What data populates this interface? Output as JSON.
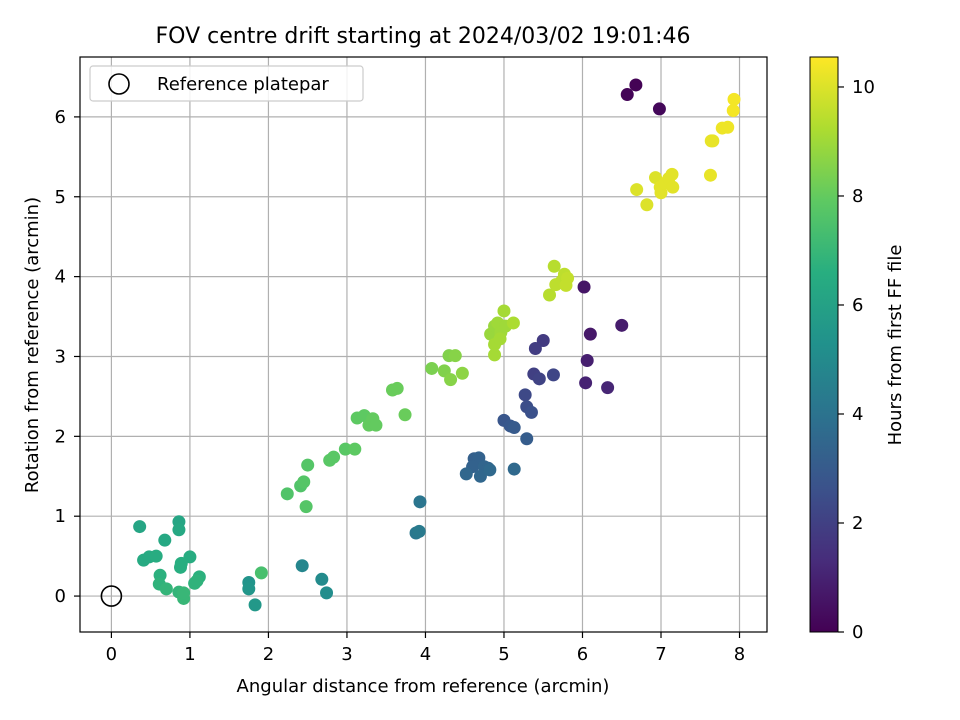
{
  "chart_data": {
    "type": "scatter",
    "title": "FOV centre drift starting at 2024/03/02 19:01:46",
    "xlabel": "Angular distance from reference (arcmin)",
    "ylabel": "Rotation from reference (arcmin)",
    "xlim": [
      -0.4,
      8.35
    ],
    "ylim": [
      -0.45,
      6.75
    ],
    "xticks": [
      0,
      1,
      2,
      3,
      4,
      5,
      6,
      7,
      8
    ],
    "yticks": [
      0,
      1,
      2,
      3,
      4,
      5,
      6
    ],
    "grid": true,
    "legend": {
      "placement": "top-left",
      "entries": [
        {
          "label": "Reference platepar",
          "marker": "open-circle"
        }
      ]
    },
    "reference_point": {
      "x": 0,
      "y": 0
    },
    "colorbar": {
      "label": "Hours from first FF file",
      "min": 0,
      "max": 10.55,
      "ticks": [
        0,
        2,
        4,
        6,
        8,
        10
      ],
      "colormap": "viridis"
    },
    "points": [
      {
        "x": 6.57,
        "y": 6.28,
        "c": 0.1
      },
      {
        "x": 6.68,
        "y": 6.4,
        "c": 0.05
      },
      {
        "x": 6.98,
        "y": 6.1,
        "c": 0.2
      },
      {
        "x": 6.02,
        "y": 3.87,
        "c": 0.6
      },
      {
        "x": 6.1,
        "y": 3.28,
        "c": 0.7
      },
      {
        "x": 6.5,
        "y": 3.39,
        "c": 0.8
      },
      {
        "x": 6.06,
        "y": 2.95,
        "c": 0.9
      },
      {
        "x": 6.04,
        "y": 2.67,
        "c": 1.0
      },
      {
        "x": 6.32,
        "y": 2.61,
        "c": 1.1
      },
      {
        "x": 5.5,
        "y": 3.2,
        "c": 1.8
      },
      {
        "x": 5.4,
        "y": 3.1,
        "c": 1.9
      },
      {
        "x": 5.38,
        "y": 2.78,
        "c": 2.0
      },
      {
        "x": 5.45,
        "y": 2.72,
        "c": 2.1
      },
      {
        "x": 5.63,
        "y": 2.77,
        "c": 2.2
      },
      {
        "x": 5.27,
        "y": 2.52,
        "c": 2.3
      },
      {
        "x": 5.29,
        "y": 2.37,
        "c": 2.5
      },
      {
        "x": 5.35,
        "y": 2.3,
        "c": 2.6
      },
      {
        "x": 5.0,
        "y": 2.2,
        "c": 2.8
      },
      {
        "x": 5.08,
        "y": 2.13,
        "c": 2.9
      },
      {
        "x": 5.13,
        "y": 2.11,
        "c": 3.0
      },
      {
        "x": 5.29,
        "y": 1.97,
        "c": 3.1
      },
      {
        "x": 4.62,
        "y": 1.72,
        "c": 3.2
      },
      {
        "x": 4.68,
        "y": 1.73,
        "c": 3.3
      },
      {
        "x": 4.6,
        "y": 1.62,
        "c": 3.3
      },
      {
        "x": 4.75,
        "y": 1.62,
        "c": 3.4
      },
      {
        "x": 4.8,
        "y": 1.6,
        "c": 3.4
      },
      {
        "x": 4.52,
        "y": 1.53,
        "c": 3.5
      },
      {
        "x": 4.7,
        "y": 1.5,
        "c": 3.5
      },
      {
        "x": 5.13,
        "y": 1.59,
        "c": 3.6
      },
      {
        "x": 4.82,
        "y": 1.58,
        "c": 3.6
      },
      {
        "x": 3.93,
        "y": 1.18,
        "c": 4.1
      },
      {
        "x": 3.88,
        "y": 0.79,
        "c": 4.2
      },
      {
        "x": 3.92,
        "y": 0.81,
        "c": 4.3
      },
      {
        "x": 2.43,
        "y": 0.38,
        "c": 4.8
      },
      {
        "x": 2.68,
        "y": 0.21,
        "c": 5.0
      },
      {
        "x": 2.74,
        "y": 0.04,
        "c": 5.1
      },
      {
        "x": 1.75,
        "y": 0.17,
        "c": 5.4
      },
      {
        "x": 1.75,
        "y": 0.09,
        "c": 5.5
      },
      {
        "x": 1.83,
        "y": -0.11,
        "c": 5.6
      },
      {
        "x": 0.36,
        "y": 0.87,
        "c": 6.2
      },
      {
        "x": 0.86,
        "y": 0.93,
        "c": 6.2
      },
      {
        "x": 0.86,
        "y": 0.83,
        "c": 6.3
      },
      {
        "x": 0.68,
        "y": 0.7,
        "c": 6.3
      },
      {
        "x": 0.41,
        "y": 0.45,
        "c": 6.4
      },
      {
        "x": 0.48,
        "y": 0.49,
        "c": 6.4
      },
      {
        "x": 0.57,
        "y": 0.5,
        "c": 6.5
      },
      {
        "x": 1.0,
        "y": 0.49,
        "c": 6.5
      },
      {
        "x": 0.89,
        "y": 0.41,
        "c": 6.6
      },
      {
        "x": 0.88,
        "y": 0.36,
        "c": 6.6
      },
      {
        "x": 0.62,
        "y": 0.26,
        "c": 6.7
      },
      {
        "x": 1.12,
        "y": 0.24,
        "c": 6.7
      },
      {
        "x": 0.61,
        "y": 0.15,
        "c": 6.8
      },
      {
        "x": 1.06,
        "y": 0.16,
        "c": 6.8
      },
      {
        "x": 1.09,
        "y": 0.19,
        "c": 6.8
      },
      {
        "x": 0.7,
        "y": 0.09,
        "c": 6.9
      },
      {
        "x": 0.86,
        "y": 0.05,
        "c": 6.9
      },
      {
        "x": 0.92,
        "y": -0.03,
        "c": 7.0
      },
      {
        "x": 0.92,
        "y": 0.04,
        "c": 7.0
      },
      {
        "x": 1.91,
        "y": 0.29,
        "c": 7.4
      },
      {
        "x": 2.24,
        "y": 1.28,
        "c": 7.6
      },
      {
        "x": 2.41,
        "y": 1.38,
        "c": 7.6
      },
      {
        "x": 2.45,
        "y": 1.43,
        "c": 7.7
      },
      {
        "x": 2.48,
        "y": 1.12,
        "c": 7.7
      },
      {
        "x": 2.5,
        "y": 1.64,
        "c": 7.7
      },
      {
        "x": 2.78,
        "y": 1.7,
        "c": 7.8
      },
      {
        "x": 2.83,
        "y": 1.74,
        "c": 7.8
      },
      {
        "x": 2.98,
        "y": 1.84,
        "c": 7.8
      },
      {
        "x": 3.1,
        "y": 1.84,
        "c": 7.9
      },
      {
        "x": 3.13,
        "y": 2.23,
        "c": 7.9
      },
      {
        "x": 3.22,
        "y": 2.26,
        "c": 7.9
      },
      {
        "x": 3.28,
        "y": 2.14,
        "c": 8.0
      },
      {
        "x": 3.33,
        "y": 2.22,
        "c": 8.0
      },
      {
        "x": 3.37,
        "y": 2.14,
        "c": 8.0
      },
      {
        "x": 3.58,
        "y": 2.58,
        "c": 8.1
      },
      {
        "x": 3.64,
        "y": 2.6,
        "c": 8.1
      },
      {
        "x": 3.74,
        "y": 2.27,
        "c": 8.1
      },
      {
        "x": 4.08,
        "y": 2.85,
        "c": 8.4
      },
      {
        "x": 4.24,
        "y": 2.82,
        "c": 8.5
      },
      {
        "x": 4.3,
        "y": 3.01,
        "c": 8.5
      },
      {
        "x": 4.38,
        "y": 3.01,
        "c": 8.6
      },
      {
        "x": 4.32,
        "y": 2.71,
        "c": 8.6
      },
      {
        "x": 4.47,
        "y": 2.79,
        "c": 8.7
      },
      {
        "x": 4.83,
        "y": 3.28,
        "c": 8.9
      },
      {
        "x": 4.88,
        "y": 3.38,
        "c": 8.9
      },
      {
        "x": 4.92,
        "y": 3.42,
        "c": 9.0
      },
      {
        "x": 4.96,
        "y": 3.3,
        "c": 9.0
      },
      {
        "x": 5.02,
        "y": 3.38,
        "c": 9.0
      },
      {
        "x": 5.0,
        "y": 3.57,
        "c": 9.1
      },
      {
        "x": 4.88,
        "y": 3.15,
        "c": 9.1
      },
      {
        "x": 4.95,
        "y": 3.22,
        "c": 9.1
      },
      {
        "x": 4.88,
        "y": 3.02,
        "c": 9.1
      },
      {
        "x": 5.12,
        "y": 3.42,
        "c": 9.2
      },
      {
        "x": 5.58,
        "y": 3.77,
        "c": 9.4
      },
      {
        "x": 5.64,
        "y": 4.13,
        "c": 9.4
      },
      {
        "x": 5.66,
        "y": 3.9,
        "c": 9.5
      },
      {
        "x": 5.74,
        "y": 3.95,
        "c": 9.5
      },
      {
        "x": 5.77,
        "y": 4.03,
        "c": 9.5
      },
      {
        "x": 5.81,
        "y": 3.98,
        "c": 9.6
      },
      {
        "x": 5.79,
        "y": 3.89,
        "c": 9.6
      },
      {
        "x": 6.69,
        "y": 5.09,
        "c": 10.0
      },
      {
        "x": 6.82,
        "y": 4.9,
        "c": 10.0
      },
      {
        "x": 6.93,
        "y": 5.24,
        "c": 10.0
      },
      {
        "x": 6.99,
        "y": 5.12,
        "c": 10.1
      },
      {
        "x": 7.0,
        "y": 5.05,
        "c": 10.1
      },
      {
        "x": 7.05,
        "y": 5.17,
        "c": 10.1
      },
      {
        "x": 7.1,
        "y": 5.23,
        "c": 10.1
      },
      {
        "x": 7.14,
        "y": 5.28,
        "c": 10.1
      },
      {
        "x": 7.15,
        "y": 5.12,
        "c": 10.1
      },
      {
        "x": 7.63,
        "y": 5.27,
        "c": 10.2
      },
      {
        "x": 7.64,
        "y": 5.7,
        "c": 10.2
      },
      {
        "x": 7.66,
        "y": 5.7,
        "c": 10.2
      },
      {
        "x": 7.78,
        "y": 5.86,
        "c": 10.3
      },
      {
        "x": 7.85,
        "y": 5.87,
        "c": 10.3
      },
      {
        "x": 7.92,
        "y": 6.08,
        "c": 10.4
      },
      {
        "x": 7.93,
        "y": 6.22,
        "c": 10.4
      }
    ]
  }
}
